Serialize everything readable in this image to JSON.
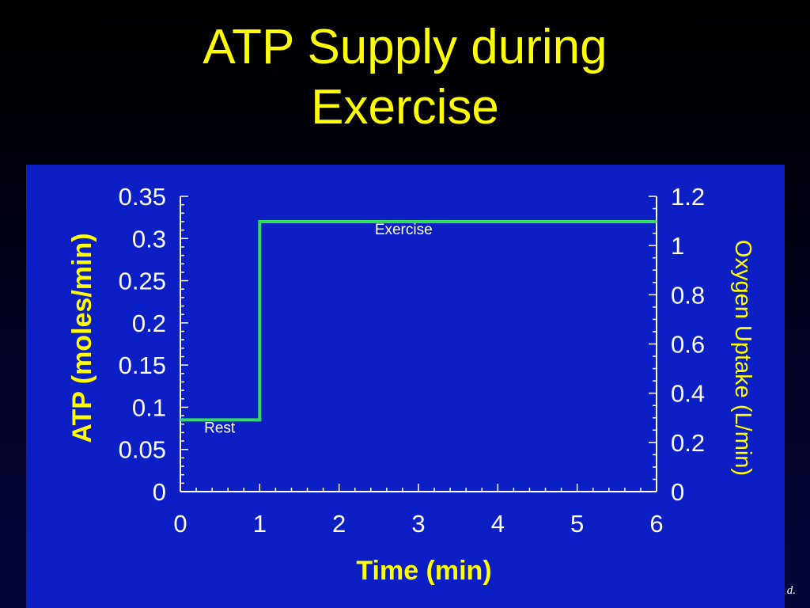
{
  "slide": {
    "title_line1": "ATP Supply during",
    "title_line2": "Exercise",
    "corner_note": "d."
  },
  "colors": {
    "title": "#ffff00",
    "panel": "#0c1fc4",
    "line": "#33dd55",
    "axis": "#ffffff",
    "label": "#ffff00"
  },
  "chart_data": {
    "type": "line",
    "title": "",
    "xlabel": "Time (min)",
    "ylabel": "ATP (moles/min)",
    "y2label": "Oxygen Uptake (L/min)",
    "xlim": [
      0,
      6
    ],
    "ylim": [
      0,
      0.35
    ],
    "y2lim": [
      0,
      1.2
    ],
    "x_ticks": [
      "0",
      "1",
      "2",
      "3",
      "4",
      "5",
      "6"
    ],
    "y_ticks": [
      "0",
      "0.05",
      "0.1",
      "0.15",
      "0.2",
      "0.25",
      "0.3",
      "0.35"
    ],
    "y2_ticks": [
      "0",
      "0.2",
      "0.4",
      "0.6",
      "0.8",
      "1",
      "1.2"
    ],
    "series": [
      {
        "values_x": [
          0,
          1,
          1,
          6
        ],
        "values_y": [
          0.085,
          0.085,
          0.32,
          0.32
        ],
        "axis": "left"
      }
    ],
    "annotations": [
      {
        "text": "Rest",
        "x": 0.3,
        "y": 0.07
      },
      {
        "text": "Exercise",
        "x": 2.45,
        "y": 0.305
      }
    ],
    "grid": false
  }
}
